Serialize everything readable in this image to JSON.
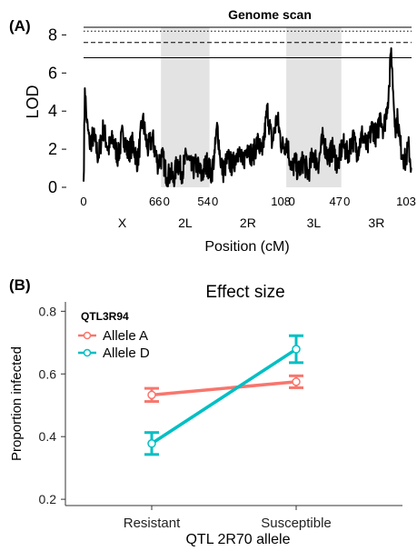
{
  "chart_data": [
    {
      "panel": "(A)",
      "type": "line",
      "title": "Genome scan",
      "xlabel": "Position (cM)",
      "ylabel": "LOD",
      "ylim": [
        0,
        8
      ],
      "yticks": [
        "0",
        "2",
        "4",
        "6",
        "8"
      ],
      "thresholds": [
        {
          "style": "dotted",
          "value": 8.2
        },
        {
          "style": "dashed",
          "value": 7.6
        },
        {
          "style": "solid",
          "value": 6.8
        }
      ],
      "chromosomes": [
        {
          "name": "X",
          "start_label": "0",
          "end_label": "66",
          "shaded": false
        },
        {
          "name": "2L",
          "start_label": "0",
          "end_label": "54",
          "shaded": true
        },
        {
          "name": "2R",
          "start_label": "0",
          "end_label": "108",
          "shaded": false
        },
        {
          "name": "3L",
          "start_label": "0",
          "end_label": "47",
          "shaded": true
        },
        {
          "name": "3R",
          "start_label": "0",
          "end_label": "103",
          "shaded": false
        }
      ],
      "profile_keypoints": [
        [
          0.0,
          0.3
        ],
        [
          0.004,
          5.2
        ],
        [
          0.01,
          3.4
        ],
        [
          0.018,
          2.3
        ],
        [
          0.03,
          2.7
        ],
        [
          0.045,
          1.6
        ],
        [
          0.06,
          3.1
        ],
        [
          0.075,
          2.0
        ],
        [
          0.09,
          2.5
        ],
        [
          0.105,
          1.6
        ],
        [
          0.12,
          2.9
        ],
        [
          0.135,
          1.8
        ],
        [
          0.15,
          2.3
        ],
        [
          0.165,
          1.3
        ],
        [
          0.18,
          3.6
        ],
        [
          0.195,
          2.0
        ],
        [
          0.21,
          2.6
        ],
        [
          0.225,
          1.3
        ],
        [
          0.24,
          1.6
        ],
        [
          0.255,
          0.5
        ],
        [
          0.265,
          0.8
        ],
        [
          0.275,
          0.3
        ],
        [
          0.285,
          1.4
        ],
        [
          0.3,
          0.8
        ],
        [
          0.315,
          1.7
        ],
        [
          0.33,
          0.9
        ],
        [
          0.345,
          1.2
        ],
        [
          0.36,
          0.6
        ],
        [
          0.375,
          1.3
        ],
        [
          0.39,
          0.7
        ],
        [
          0.4,
          1.8
        ],
        [
          0.408,
          3.3
        ],
        [
          0.416,
          1.6
        ],
        [
          0.425,
          0.8
        ],
        [
          0.44,
          1.5
        ],
        [
          0.455,
          1.1
        ],
        [
          0.47,
          2.0
        ],
        [
          0.485,
          1.2
        ],
        [
          0.5,
          2.2
        ],
        [
          0.515,
          1.6
        ],
        [
          0.53,
          2.4
        ],
        [
          0.545,
          1.7
        ],
        [
          0.56,
          4.1
        ],
        [
          0.575,
          2.3
        ],
        [
          0.59,
          3.7
        ],
        [
          0.605,
          2.1
        ],
        [
          0.62,
          2.4
        ],
        [
          0.635,
          0.9
        ],
        [
          0.645,
          1.3
        ],
        [
          0.655,
          0.8
        ],
        [
          0.67,
          1.4
        ],
        [
          0.685,
          0.7
        ],
        [
          0.7,
          1.8
        ],
        [
          0.715,
          1.2
        ],
        [
          0.73,
          2.6
        ],
        [
          0.745,
          1.6
        ],
        [
          0.76,
          2.0
        ],
        [
          0.775,
          1.1
        ],
        [
          0.79,
          2.3
        ],
        [
          0.805,
          1.7
        ],
        [
          0.82,
          2.6
        ],
        [
          0.835,
          1.9
        ],
        [
          0.85,
          2.8
        ],
        [
          0.865,
          2.0
        ],
        [
          0.88,
          3.2
        ],
        [
          0.895,
          2.6
        ],
        [
          0.905,
          3.9
        ],
        [
          0.915,
          3.0
        ],
        [
          0.925,
          4.2
        ],
        [
          0.932,
          5.3
        ],
        [
          0.938,
          7.3
        ],
        [
          0.944,
          5.0
        ],
        [
          0.95,
          3.2
        ],
        [
          0.958,
          3.6
        ],
        [
          0.966,
          2.2
        ],
        [
          0.974,
          1.7
        ],
        [
          0.982,
          1.3
        ],
        [
          0.99,
          2.2
        ],
        [
          1.0,
          1.0
        ]
      ]
    },
    {
      "panel": "(B)",
      "type": "line",
      "title": "Effect size",
      "xlabel": "QTL 2R70 allele",
      "ylabel": "Proportion infected",
      "categories": [
        "Resistant",
        "Susceptible"
      ],
      "ylim": [
        0.18,
        0.83
      ],
      "yticks": [
        "0.2",
        "0.4",
        "0.6",
        "0.8"
      ],
      "legend_title": "QTL3R94",
      "legend_position": "top-left",
      "series": [
        {
          "name": "Allele A",
          "color": "#F8766D",
          "values": [
            0.533,
            0.575
          ],
          "lower": [
            0.512,
            0.556
          ],
          "upper": [
            0.554,
            0.594
          ]
        },
        {
          "name": "Allele D",
          "color": "#00BFC4",
          "values": [
            0.378,
            0.679
          ],
          "lower": [
            0.343,
            0.636
          ],
          "upper": [
            0.413,
            0.722
          ]
        }
      ]
    }
  ]
}
